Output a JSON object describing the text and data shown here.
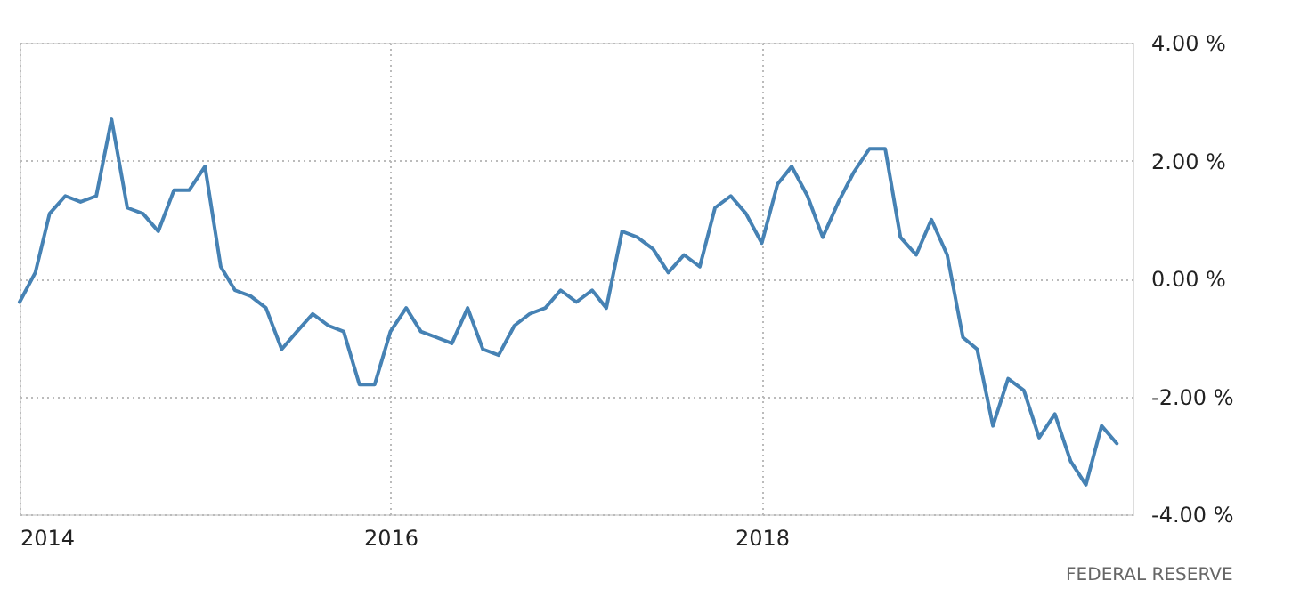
{
  "chart_data": {
    "type": "line",
    "x": [
      "2014-01",
      "2014-02",
      "2014-03",
      "2014-04",
      "2014-05",
      "2014-06",
      "2014-07",
      "2014-08",
      "2014-09",
      "2014-10",
      "2014-11",
      "2014-12",
      "2015-01",
      "2015-02",
      "2015-03",
      "2015-04",
      "2015-05",
      "2015-06",
      "2015-07",
      "2015-08",
      "2015-09",
      "2015-10",
      "2015-11",
      "2015-12",
      "2016-01",
      "2016-02",
      "2016-03",
      "2016-04",
      "2016-05",
      "2016-06",
      "2016-07",
      "2016-08",
      "2016-09",
      "2016-10",
      "2016-11",
      "2016-12",
      "2017-01",
      "2017-02",
      "2017-03",
      "2017-04",
      "2017-05",
      "2017-06",
      "2017-07",
      "2017-08",
      "2017-09",
      "2017-10",
      "2017-11",
      "2017-12",
      "2018-01",
      "2018-02",
      "2018-03",
      "2018-04",
      "2018-05",
      "2018-06",
      "2018-07",
      "2018-08",
      "2018-09",
      "2018-10",
      "2018-11",
      "2018-12",
      "2019-01",
      "2019-02",
      "2019-03",
      "2019-04",
      "2019-05",
      "2019-06",
      "2019-07",
      "2019-08",
      "2019-09",
      "2019-10",
      "2019-11",
      "2019-12"
    ],
    "series": [
      {
        "color": "#4682b4",
        "values": [
          -0.4,
          0.1,
          1.1,
          1.4,
          1.3,
          1.4,
          2.7,
          1.2,
          1.1,
          0.8,
          1.5,
          1.5,
          1.9,
          0.2,
          -0.2,
          -0.3,
          -0.5,
          -1.2,
          -0.9,
          -0.6,
          -0.8,
          -0.9,
          -1.8,
          -1.8,
          -0.9,
          -0.5,
          -0.9,
          -1.0,
          -1.1,
          -0.5,
          -1.2,
          -1.3,
          -0.8,
          -0.6,
          -0.5,
          -0.2,
          -0.4,
          -0.2,
          -0.5,
          0.8,
          0.7,
          0.5,
          0.1,
          0.4,
          0.2,
          1.2,
          1.4,
          1.1,
          0.6,
          1.6,
          1.9,
          1.4,
          0.7,
          1.3,
          1.8,
          2.2,
          2.2,
          0.7,
          0.4,
          1.0,
          0.4,
          -1.0,
          -1.2,
          -2.5,
          -1.7,
          -1.9,
          -2.7,
          -2.3,
          -3.1,
          -3.5,
          -2.5,
          -2.8
        ]
      }
    ],
    "xlim": [
      "2014-01",
      "2020-01"
    ],
    "xticks": [
      "2014",
      "2016",
      "2018"
    ],
    "ylim": [
      -4,
      4
    ],
    "yticks": [
      {
        "value": -4,
        "label": "-4.00 %"
      },
      {
        "value": -2,
        "label": "-2.00 %"
      },
      {
        "value": 0,
        "label": "0.00 %"
      },
      {
        "value": 2,
        "label": "2.00 %"
      },
      {
        "value": 4,
        "label": "4.00 %"
      }
    ],
    "grid": true,
    "marker": "none",
    "line_style": "solid",
    "annotations": [
      "FEDERAL RESERVE"
    ]
  }
}
